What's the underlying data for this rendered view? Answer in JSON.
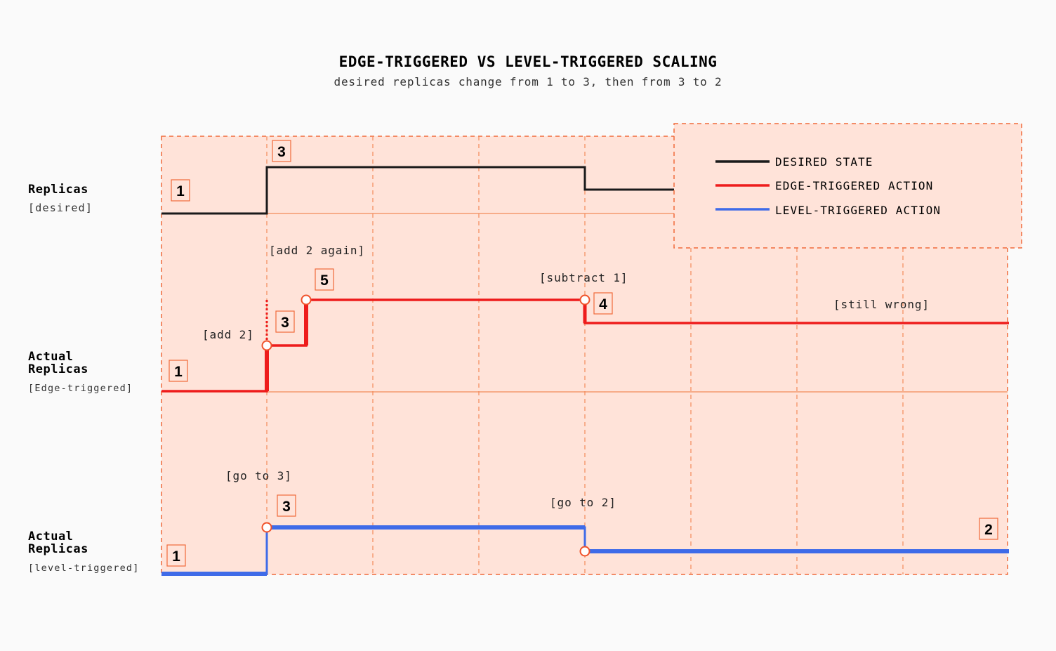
{
  "title": "EDGE-TRIGGERED VS LEVEL-TRIGGERED SCALING",
  "subtitle": "desired replicas change from 1 to 3, then from 3 to 2",
  "rows": {
    "desired": {
      "label": "Replicas",
      "sub": "[desired]"
    },
    "edge": {
      "label_line1": "Actual",
      "label_line2": "Replicas",
      "sub": "[Edge-triggered]"
    },
    "level": {
      "label_line1": "Actual",
      "label_line2": "Replicas",
      "sub": "[level-triggered]"
    }
  },
  "legend": {
    "desired": "DESIRED STATE",
    "edge": "EDGE-TRIGGERED ACTION",
    "level": "LEVEL-TRIGGERED ACTION"
  },
  "annotations": {
    "add_2_again": "[add 2 again]",
    "subtract_1": "[subtract 1]",
    "still_wrong": "[still wrong]",
    "add_2": "[add 2]",
    "go_to_3": "[go to 3]",
    "go_to_2": "[go to 2]"
  },
  "badges": {
    "desired_start": "1",
    "desired_up": "3",
    "edge_start": "1",
    "edge_mid": "3",
    "edge_high": "5",
    "edge_final": "4",
    "level_start": "1",
    "level_up": "3",
    "level_final": "2"
  },
  "colors": {
    "desired": "#1a1a1a",
    "edge": "#ee1c1c",
    "level": "#3f6be8",
    "panel_fill": "#ffe3d9",
    "dash": "#f28a5a",
    "marker": "#f0522a"
  }
}
